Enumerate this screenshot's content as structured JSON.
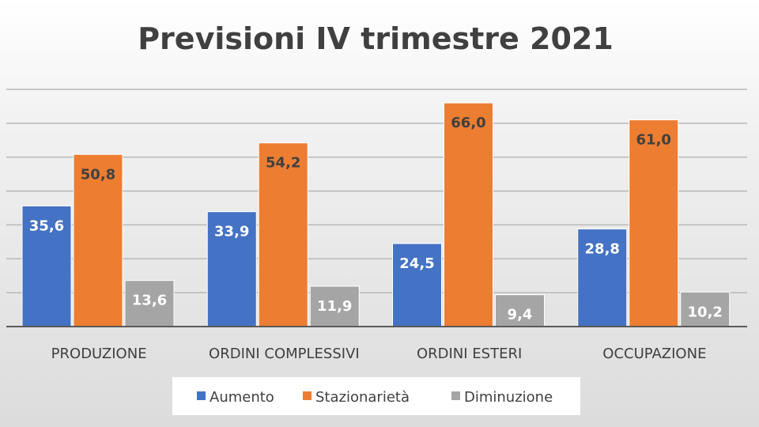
{
  "chart_data": {
    "type": "bar",
    "title": "Previsioni IV trimestre 2021",
    "categories": [
      "PRODUZIONE",
      "ORDINI COMPLESSIVI",
      "ORDINI ESTERI",
      "OCCUPAZIONE"
    ],
    "series": [
      {
        "name": "Aumento",
        "color": "#4472c4",
        "values": [
          35.6,
          33.9,
          24.5,
          28.8
        ],
        "labels": [
          "35,6",
          "33,9",
          "24,5",
          "28,8"
        ]
      },
      {
        "name": "Stazionarietà",
        "color": "#ed7d31",
        "values": [
          50.8,
          54.2,
          66.0,
          61.0
        ],
        "labels": [
          "50,8",
          "54,2",
          "66,0",
          "61,0"
        ]
      },
      {
        "name": "Diminuzione",
        "color": "#a5a5a5",
        "values": [
          13.6,
          11.9,
          9.4,
          10.2
        ],
        "labels": [
          "13,6",
          "11,9",
          "9,4",
          "10,2"
        ]
      }
    ],
    "ylim": [
      0,
      70
    ],
    "grid": true,
    "legend_position": "bottom"
  }
}
